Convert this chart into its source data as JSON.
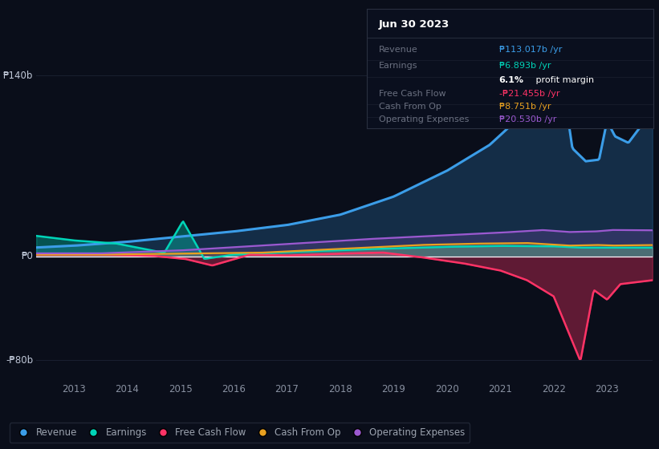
{
  "background_color": "#0a0e1a",
  "plot_bg_color": "#0a0e1a",
  "text_color": "#9ca3af",
  "grid_color": "#1e2535",
  "ylabel_140": "₱140b",
  "ylabel_0": "₱0",
  "ylabel_n80": "-₱80b",
  "revenue_color": "#3b9de8",
  "earnings_color": "#00d4b8",
  "fcf_color": "#ff3366",
  "cashfromop_color": "#e8a020",
  "opex_color": "#9b59d0",
  "tooltip": {
    "date": "Jun 30 2023",
    "revenue_label": "Revenue",
    "revenue_val": "₱113.017b /yr",
    "earnings_label": "Earnings",
    "earnings_val": "₱6.893b /yr",
    "profit_margin": "6.1% profit margin",
    "fcf_label": "Free Cash Flow",
    "fcf_val": "-₱21.455b /yr",
    "cop_label": "Cash From Op",
    "cop_val": "₱8.751b /yr",
    "opex_label": "Operating Expenses",
    "opex_val": "₱20.530b /yr"
  },
  "legend_items": [
    "Revenue",
    "Earnings",
    "Free Cash Flow",
    "Cash From Op",
    "Operating Expenses"
  ],
  "legend_colors": [
    "#3b9de8",
    "#00d4b8",
    "#ff3366",
    "#e8a020",
    "#9b59d0"
  ],
  "ylim": [
    -95,
    155
  ],
  "xlim_start": 2012.3,
  "xlim_end": 2023.85
}
